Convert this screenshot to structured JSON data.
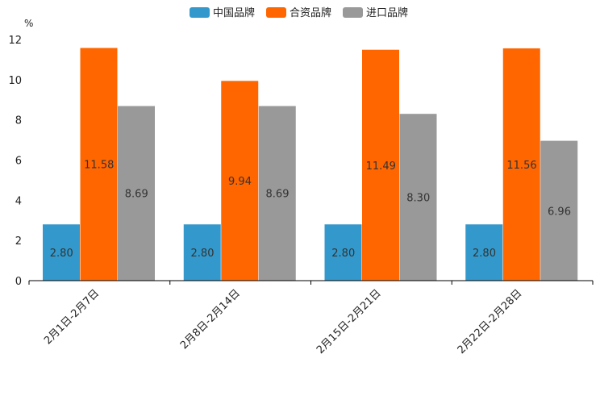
{
  "chart_data": {
    "type": "bar",
    "title": "",
    "unit": "%",
    "xlabel": "",
    "ylabel": "",
    "ylim": [
      0,
      12
    ],
    "yticks": [
      0,
      2,
      4,
      6,
      8,
      10,
      12
    ],
    "grid": false,
    "legend_position": "top",
    "categories": [
      "2月1日-2月7日",
      "2月8日-2月14日",
      "2月15日-2月21日",
      "2月22日-2月28日"
    ],
    "series": [
      {
        "name": "中国品牌",
        "color": "#3399cc",
        "values": [
          2.8,
          2.8,
          2.8,
          2.8
        ],
        "labels": [
          "2.80",
          "2.80",
          "2.80",
          "2.80"
        ]
      },
      {
        "name": "合资品牌",
        "color": "#ff6600",
        "values": [
          11.58,
          9.94,
          11.49,
          11.56
        ],
        "labels": [
          "11.58",
          "9.94",
          "11.49",
          "11.56"
        ]
      },
      {
        "name": "进口品牌",
        "color": "#999999",
        "values": [
          8.69,
          8.69,
          8.3,
          6.96
        ],
        "labels": [
          "8.69",
          "8.69",
          "8.30",
          "6.96"
        ]
      }
    ]
  }
}
